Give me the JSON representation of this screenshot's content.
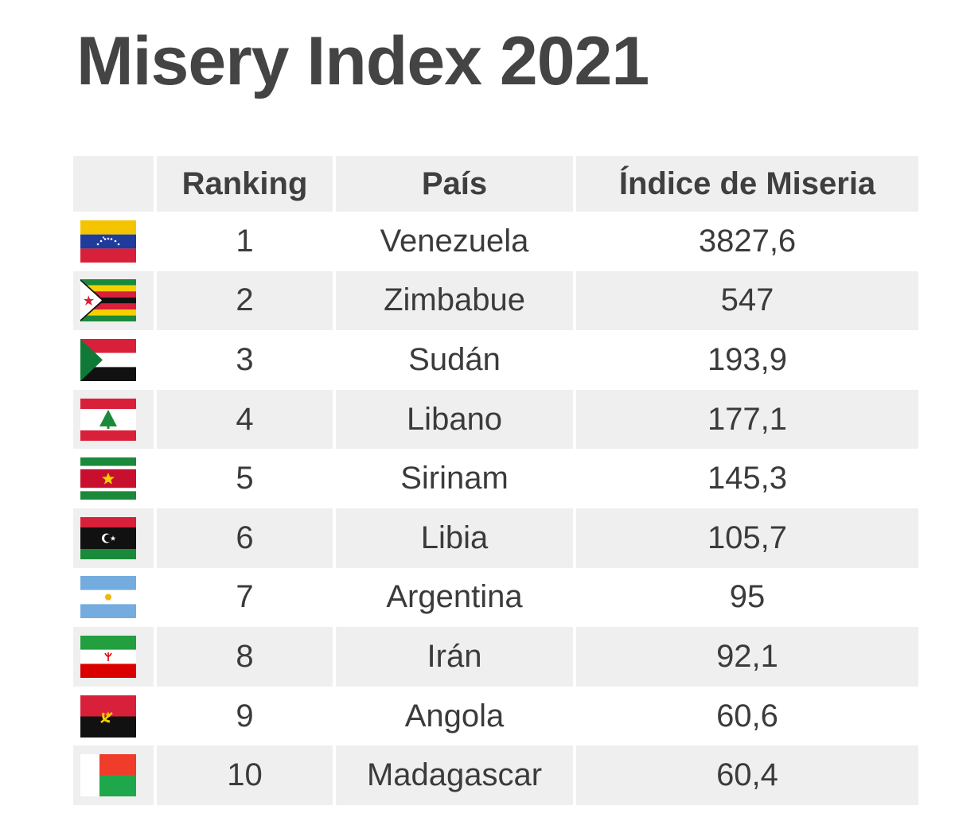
{
  "title": "Misery Index 2021",
  "chart_data": {
    "type": "table",
    "columns": [
      "",
      "Ranking",
      "País",
      "Índice de Miseria"
    ],
    "rows": [
      {
        "rank": "1",
        "country": "Venezuela",
        "index": "3827,6",
        "flag": "venezuela-flag-icon"
      },
      {
        "rank": "2",
        "country": "Zimbabue",
        "index": "547",
        "flag": "zimbabwe-flag-icon"
      },
      {
        "rank": "3",
        "country": "Sudán",
        "index": "193,9",
        "flag": "sudan-flag-icon"
      },
      {
        "rank": "4",
        "country": "Libano",
        "index": "177,1",
        "flag": "lebanon-flag-icon"
      },
      {
        "rank": "5",
        "country": "Sirinam",
        "index": "145,3",
        "flag": "suriname-flag-icon"
      },
      {
        "rank": "6",
        "country": "Libia",
        "index": "105,7",
        "flag": "libya-flag-icon"
      },
      {
        "rank": "7",
        "country": "Argentina",
        "index": "95",
        "flag": "argentina-flag-icon"
      },
      {
        "rank": "8",
        "country": "Irán",
        "index": "92,1",
        "flag": "iran-flag-icon"
      },
      {
        "rank": "9",
        "country": "Angola",
        "index": "60,6",
        "flag": "angola-flag-icon"
      },
      {
        "rank": "10",
        "country": "Madagascar",
        "index": "60,4",
        "flag": "madagascar-flag-icon"
      }
    ]
  },
  "colors": {
    "title": "#444444",
    "header_bg": "#efefef",
    "stripe_bg": "#efefef",
    "text": "#3b3b3b"
  }
}
